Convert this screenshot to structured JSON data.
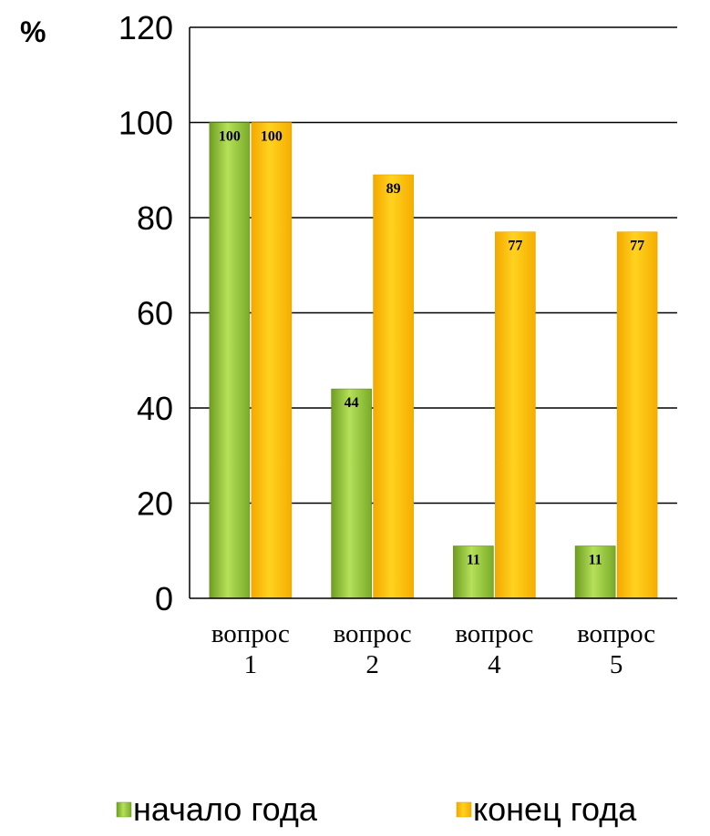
{
  "chart_data": {
    "type": "bar",
    "unit_label": "%",
    "title": "",
    "xlabel": "",
    "ylabel": "",
    "ylim": [
      0,
      120
    ],
    "yticks": [
      0,
      20,
      40,
      60,
      80,
      100,
      120
    ],
    "grid": true,
    "legend_position": "bottom",
    "categories": [
      [
        "вопрос",
        "1"
      ],
      [
        "вопрос",
        "2"
      ],
      [
        "вопрос",
        "4"
      ],
      [
        "вопрос",
        "5"
      ]
    ],
    "series": [
      {
        "name": "начало года",
        "color": "#8dc63f",
        "values": [
          100,
          44,
          11,
          11
        ]
      },
      {
        "name": "конец года",
        "color": "#ffc000",
        "values": [
          100,
          89,
          77,
          77
        ]
      }
    ]
  }
}
